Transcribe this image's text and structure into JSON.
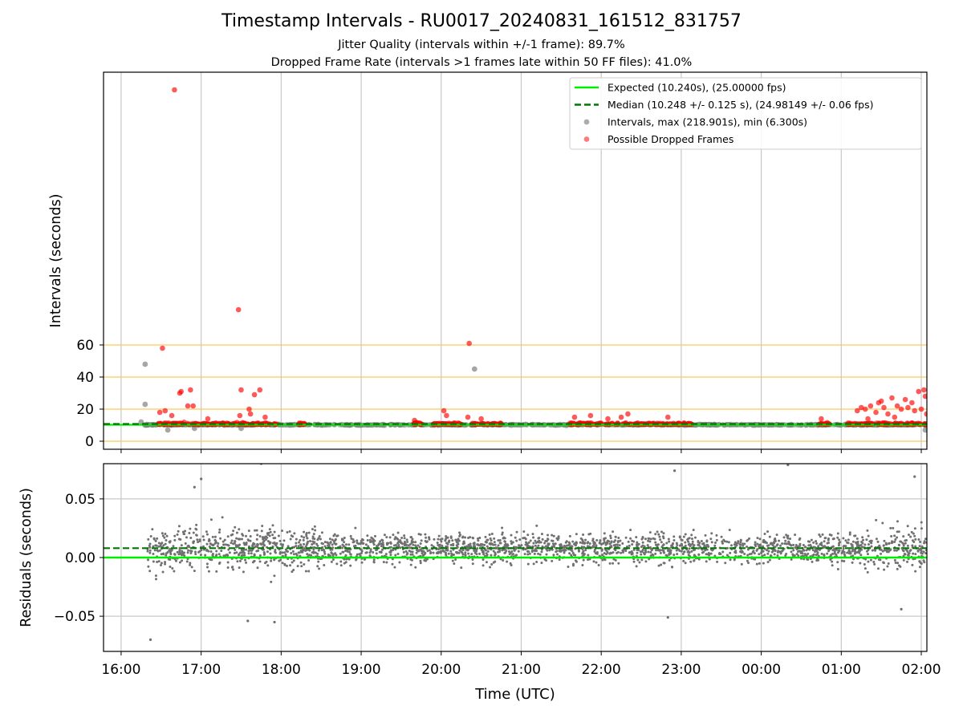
{
  "figure": {
    "title": "Timestamp Intervals - RU0017_20240831_161512_831757",
    "subtitle_1": "Jitter Quality (intervals within +/-1 frame): 89.7%",
    "subtitle_2": "Dropped Frame Rate (intervals >1 frames late within 50 FF files): 41.0%",
    "xlabel": "Time (UTC)"
  },
  "colors": {
    "expected": "#00ee00",
    "median": "#007700",
    "intervals": "#808080",
    "dropped": "#ff0000",
    "threshold": "#ffc85a",
    "grid": "#c8c8c8"
  },
  "chart_data": [
    {
      "type": "scatter",
      "panel": "top",
      "ylabel": "Intervals (seconds)",
      "x_ticks": [
        "16:00",
        "17:00",
        "18:00",
        "19:00",
        "20:00",
        "21:00",
        "22:00",
        "23:00",
        "00:00",
        "01:00",
        "02:00"
      ],
      "xlim_hours": [
        15.78,
        26.07
      ],
      "y_ticks": [
        0,
        20,
        40,
        60
      ],
      "ylim": [
        -5,
        230
      ],
      "grid": "vertical",
      "legend_placement": "top-right",
      "expected_interval": 10.24,
      "median_interval": 10.248,
      "threshold_lines": [
        0,
        20,
        40,
        60
      ],
      "legend": [
        {
          "label": "Expected (10.240s), (25.00000 fps)",
          "style": "solid",
          "color": "#00ee00"
        },
        {
          "label": "Median (10.248 +/- 0.125 s), (24.98149 +/- 0.06 fps)",
          "style": "dashed",
          "color": "#007700"
        },
        {
          "label": "Intervals, max (218.901s), min (6.300s)",
          "style": "dot",
          "color": "#909090"
        },
        {
          "label": "Possible Dropped Frames",
          "style": "dot",
          "color": "#ff5050"
        }
      ],
      "interval_segments_hours": [
        [
          16.28,
          26.07
        ]
      ],
      "gray_outliers": [
        {
          "x": "16:18",
          "y": 48
        },
        {
          "x": "16:18",
          "y": 23
        },
        {
          "x": "16:15",
          "y": 12
        },
        {
          "x": "16:35",
          "y": 7
        },
        {
          "x": "16:55",
          "y": 8
        },
        {
          "x": "17:30",
          "y": 8
        },
        {
          "x": "20:25",
          "y": 45
        },
        {
          "x": "20:30",
          "y": 11
        },
        {
          "x": "02:03",
          "y": 7
        }
      ],
      "dropped_frames": [
        {
          "x": "16:40",
          "y": 219
        },
        {
          "x": "17:28",
          "y": 82
        },
        {
          "x": "16:31",
          "y": 58
        },
        {
          "x": "20:21",
          "y": 61
        },
        {
          "x": "16:29",
          "y": 18
        },
        {
          "x": "16:33",
          "y": 19
        },
        {
          "x": "16:38",
          "y": 16
        },
        {
          "x": "16:44",
          "y": 30
        },
        {
          "x": "16:45",
          "y": 31
        },
        {
          "x": "16:52",
          "y": 32
        },
        {
          "x": "16:50",
          "y": 22
        },
        {
          "x": "16:54",
          "y": 22
        },
        {
          "x": "17:05",
          "y": 14
        },
        {
          "x": "17:30",
          "y": 32
        },
        {
          "x": "17:36",
          "y": 20
        },
        {
          "x": "17:37",
          "y": 17
        },
        {
          "x": "17:40",
          "y": 29
        },
        {
          "x": "17:44",
          "y": 32
        },
        {
          "x": "17:48",
          "y": 15
        },
        {
          "x": "17:29",
          "y": 16
        },
        {
          "x": "19:40",
          "y": 13
        },
        {
          "x": "20:02",
          "y": 19
        },
        {
          "x": "20:04",
          "y": 16
        },
        {
          "x": "20:20",
          "y": 15
        },
        {
          "x": "20:30",
          "y": 14
        },
        {
          "x": "21:40",
          "y": 15
        },
        {
          "x": "21:52",
          "y": 16
        },
        {
          "x": "22:05",
          "y": 14
        },
        {
          "x": "22:15",
          "y": 15
        },
        {
          "x": "22:20",
          "y": 17
        },
        {
          "x": "22:50",
          "y": 15
        },
        {
          "x": "00:45",
          "y": 14
        },
        {
          "x": "01:12",
          "y": 19
        },
        {
          "x": "01:15",
          "y": 21
        },
        {
          "x": "01:18",
          "y": 20
        },
        {
          "x": "01:20",
          "y": 14
        },
        {
          "x": "01:22",
          "y": 22
        },
        {
          "x": "01:26",
          "y": 18
        },
        {
          "x": "01:28",
          "y": 24
        },
        {
          "x": "01:30",
          "y": 25
        },
        {
          "x": "01:32",
          "y": 21
        },
        {
          "x": "01:35",
          "y": 17
        },
        {
          "x": "01:38",
          "y": 27
        },
        {
          "x": "01:40",
          "y": 15
        },
        {
          "x": "01:42",
          "y": 22
        },
        {
          "x": "01:45",
          "y": 20
        },
        {
          "x": "01:48",
          "y": 26
        },
        {
          "x": "01:50",
          "y": 21
        },
        {
          "x": "01:53",
          "y": 24
        },
        {
          "x": "01:55",
          "y": 19
        },
        {
          "x": "01:58",
          "y": 31
        },
        {
          "x": "02:00",
          "y": 20
        },
        {
          "x": "02:02",
          "y": 32
        },
        {
          "x": "02:03",
          "y": 28
        },
        {
          "x": "02:04",
          "y": 17
        }
      ],
      "dropped_clusters_hours": [
        [
          16.45,
          17.0
        ],
        [
          17.0,
          17.35
        ],
        [
          17.38,
          17.95
        ],
        [
          18.2,
          18.3
        ],
        [
          19.65,
          19.75
        ],
        [
          19.9,
          20.25
        ],
        [
          20.38,
          20.75
        ],
        [
          21.6,
          22.8
        ],
        [
          22.82,
          23.15
        ],
        [
          24.72,
          24.85
        ],
        [
          25.08,
          26.07
        ]
      ]
    },
    {
      "type": "scatter",
      "panel": "bottom",
      "ylabel": "Residuals (seconds)",
      "y_ticks": [
        -0.05,
        0.0,
        0.05
      ],
      "y_tick_labels": [
        "−0.05",
        "0.00",
        "0.05"
      ],
      "ylim": [
        -0.08,
        0.08
      ],
      "grid": "both",
      "expected_residual": 0.0,
      "median_residual": 0.008,
      "residual_spread_sd": 0.012,
      "notable_points": [
        {
          "x": "16:22",
          "y": -0.07
        },
        {
          "x": "17:55",
          "y": -0.055
        },
        {
          "x": "17:35",
          "y": -0.054
        },
        {
          "x": "22:50",
          "y": -0.051
        },
        {
          "x": "01:45",
          "y": -0.044
        },
        {
          "x": "16:55",
          "y": 0.06
        },
        {
          "x": "17:00",
          "y": 0.067
        },
        {
          "x": "17:45",
          "y": 0.08
        },
        {
          "x": "22:55",
          "y": 0.074
        },
        {
          "x": "00:20",
          "y": 0.079
        },
        {
          "x": "01:55",
          "y": 0.069
        }
      ]
    }
  ]
}
